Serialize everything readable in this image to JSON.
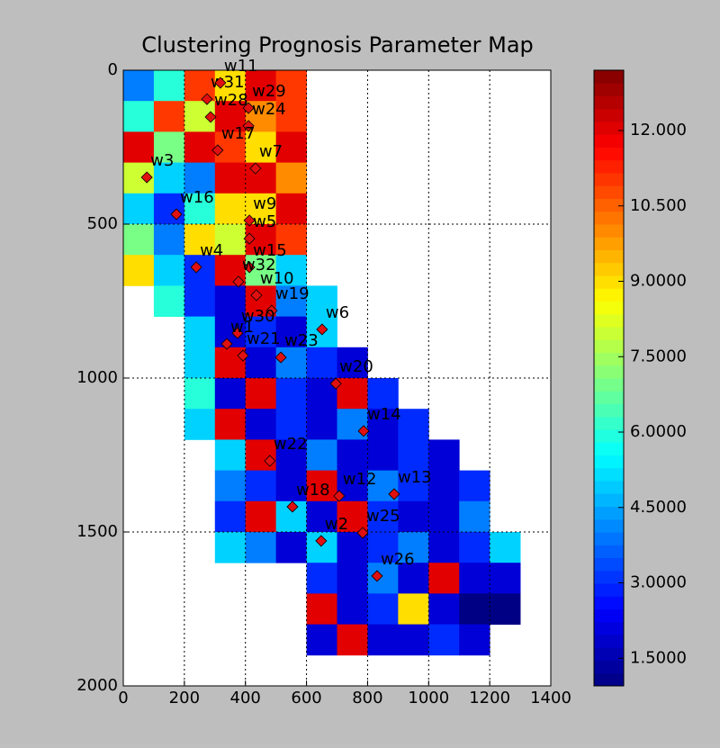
{
  "chart_data": {
    "type": "heatmap",
    "title": "Clustering Prognosis Parameter Map",
    "colormap": "jet",
    "xlim": [
      0,
      1400
    ],
    "ylim": [
      2000,
      0
    ],
    "xticks": [
      0,
      200,
      400,
      600,
      800,
      1000,
      1200,
      1400
    ],
    "yticks": [
      0,
      500,
      1000,
      1500,
      2000
    ],
    "grid": true,
    "xbins": [
      0,
      100,
      200,
      300,
      400,
      500,
      600,
      700,
      800,
      900,
      1000,
      1100,
      1200,
      1300,
      1400
    ],
    "ybins": [
      0,
      100,
      200,
      300,
      400,
      500,
      600,
      700,
      800,
      900,
      1000,
      1100,
      1200,
      1300,
      1400,
      1500,
      1600,
      1700,
      1800,
      1900
    ],
    "z": [
      [
        4,
        6,
        11,
        9,
        12,
        11,
        null,
        null,
        null,
        null,
        null,
        null,
        null,
        null
      ],
      [
        6,
        11,
        8,
        12,
        10,
        11,
        null,
        null,
        null,
        null,
        null,
        null,
        null,
        null
      ],
      [
        12,
        7,
        12,
        11,
        9,
        12,
        null,
        null,
        null,
        null,
        null,
        null,
        null,
        null
      ],
      [
        8,
        5,
        4,
        12,
        12,
        10,
        null,
        null,
        null,
        null,
        null,
        null,
        null,
        null
      ],
      [
        5,
        3,
        6,
        9,
        9,
        12,
        null,
        null,
        null,
        null,
        null,
        null,
        null,
        null
      ],
      [
        7,
        4,
        9,
        8,
        12,
        11,
        null,
        null,
        null,
        null,
        null,
        null,
        null,
        null
      ],
      [
        9,
        5,
        3,
        12,
        7,
        5,
        null,
        null,
        null,
        null,
        null,
        null,
        null,
        null
      ],
      [
        null,
        6,
        3,
        2,
        12,
        4,
        5,
        null,
        null,
        null,
        null,
        null,
        null,
        null
      ],
      [
        null,
        null,
        5,
        2,
        3,
        2,
        5,
        null,
        null,
        null,
        null,
        null,
        null,
        null
      ],
      [
        null,
        null,
        5,
        12,
        2,
        4,
        3,
        2,
        null,
        null,
        null,
        null,
        null,
        null
      ],
      [
        null,
        null,
        6,
        2,
        12,
        3,
        2,
        12,
        3,
        null,
        null,
        null,
        null,
        null
      ],
      [
        null,
        null,
        5,
        12,
        2,
        3,
        2,
        4,
        2,
        3,
        null,
        null,
        null,
        null
      ],
      [
        null,
        null,
        null,
        5,
        12,
        2,
        4,
        2,
        2,
        3,
        2,
        null,
        null,
        null
      ],
      [
        null,
        null,
        null,
        4,
        3,
        2,
        12,
        2,
        4,
        3,
        2,
        3,
        null,
        null
      ],
      [
        null,
        null,
        null,
        3,
        12,
        5,
        2,
        12,
        3,
        2,
        2,
        4,
        null,
        null
      ],
      [
        null,
        null,
        null,
        5,
        4,
        2,
        5,
        2,
        3,
        4,
        2,
        3,
        5,
        null
      ],
      [
        null,
        null,
        null,
        null,
        null,
        null,
        3,
        2,
        4,
        2,
        12,
        2,
        2,
        null
      ],
      [
        null,
        null,
        null,
        null,
        null,
        null,
        12,
        2,
        3,
        9,
        2,
        1,
        1,
        null
      ],
      [
        null,
        null,
        null,
        null,
        null,
        null,
        2,
        12,
        2,
        2,
        3,
        2,
        null,
        null
      ]
    ],
    "clim": [
      0.95,
      13.2
    ],
    "colorbar_ticks": [
      {
        "value": 1.5,
        "label": "1.5000"
      },
      {
        "value": 3,
        "label": "3.0000"
      },
      {
        "value": 4.5,
        "label": "4.5000"
      },
      {
        "value": 6,
        "label": "6.0000"
      },
      {
        "value": 7.5,
        "label": "7.5000"
      },
      {
        "value": 9,
        "label": "9.0000"
      },
      {
        "value": 10.5,
        "label": "10.500"
      },
      {
        "value": 12,
        "label": "12.000"
      }
    ],
    "wells": {
      "color": "#e01010",
      "names": [
        "w31",
        "w11",
        "w29",
        "w28",
        "w24",
        "w7",
        "w17",
        "w3",
        "w16",
        "w9",
        "w5",
        "w4",
        "w15",
        "w32",
        "w19",
        "w10",
        "w6",
        "w30",
        "w1",
        "w23",
        "w21",
        "w20",
        "w14",
        "w22",
        "w13",
        "w12",
        "w18",
        "w2",
        "w25",
        "w26"
      ],
      "x": [
        274,
        318,
        410,
        286,
        410,
        433,
        309,
        77,
        174,
        413,
        413,
        239,
        413,
        377,
        486,
        436,
        651,
        374,
        339,
        516,
        392,
        696,
        787,
        480,
        887,
        707,
        554,
        648,
        784,
        831
      ],
      "y": [
        94,
        41,
        123,
        152,
        181,
        319,
        260,
        348,
        468,
        488,
        547,
        640,
        640,
        687,
        781,
        731,
        842,
        854,
        889,
        933,
        927,
        1018,
        1172,
        1269,
        1377,
        1383,
        1418,
        1529,
        1503,
        1643
      ]
    }
  }
}
